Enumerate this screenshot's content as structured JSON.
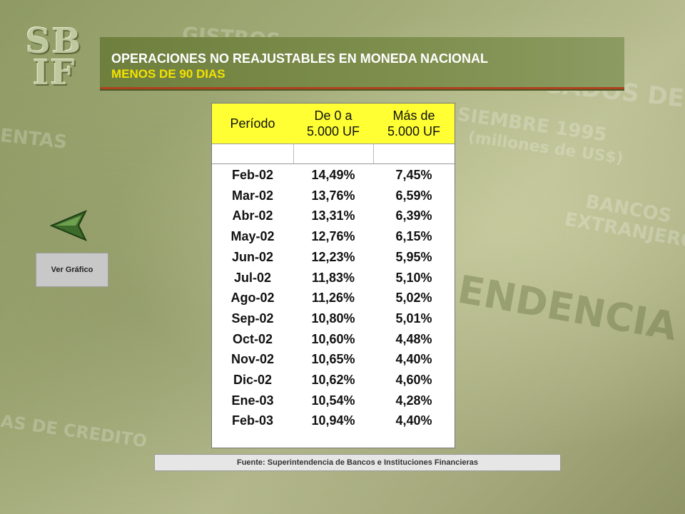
{
  "logo": {
    "line1": "SB",
    "line2": "IF"
  },
  "title": {
    "line1": "OPERACIONES NO REAJUSTABLES EN MONEDA NACIONAL",
    "line2": "MENOS DE 90 DIAS"
  },
  "nav": {
    "ver_grafico_label": "Ver Gráfico"
  },
  "table": {
    "headers": [
      "Período",
      "De 0 a\n5.000 UF",
      "Más de\n5.000 UF"
    ],
    "rows": [
      [
        "Feb-02",
        "14,49%",
        "7,45%"
      ],
      [
        "Mar-02",
        "13,76%",
        "6,59%"
      ],
      [
        "Abr-02",
        "13,31%",
        "6,39%"
      ],
      [
        "May-02",
        "12,76%",
        "6,15%"
      ],
      [
        "Jun-02",
        "12,23%",
        "5,95%"
      ],
      [
        "Jul-02",
        "11,83%",
        "5,10%"
      ],
      [
        "Ago-02",
        "11,26%",
        "5,02%"
      ],
      [
        "Sep-02",
        "10,80%",
        "5,01%"
      ],
      [
        "Oct-02",
        "10,60%",
        "4,48%"
      ],
      [
        "Nov-02",
        "10,65%",
        "4,40%"
      ],
      [
        "Dic-02",
        "10,62%",
        "4,60%"
      ],
      [
        "Ene-03",
        "10,54%",
        "4,28%"
      ],
      [
        "Feb-03",
        "10,94%",
        "4,40%"
      ]
    ]
  },
  "footer": {
    "source": "Fuente: Superintendencia de Bancos e Instituciones Financieras"
  },
  "colors": {
    "title_bar": "#7e8f4e",
    "title_line2": "#f5e200",
    "header_bg": "#ffff33",
    "accent_border": "#b0411f"
  }
}
